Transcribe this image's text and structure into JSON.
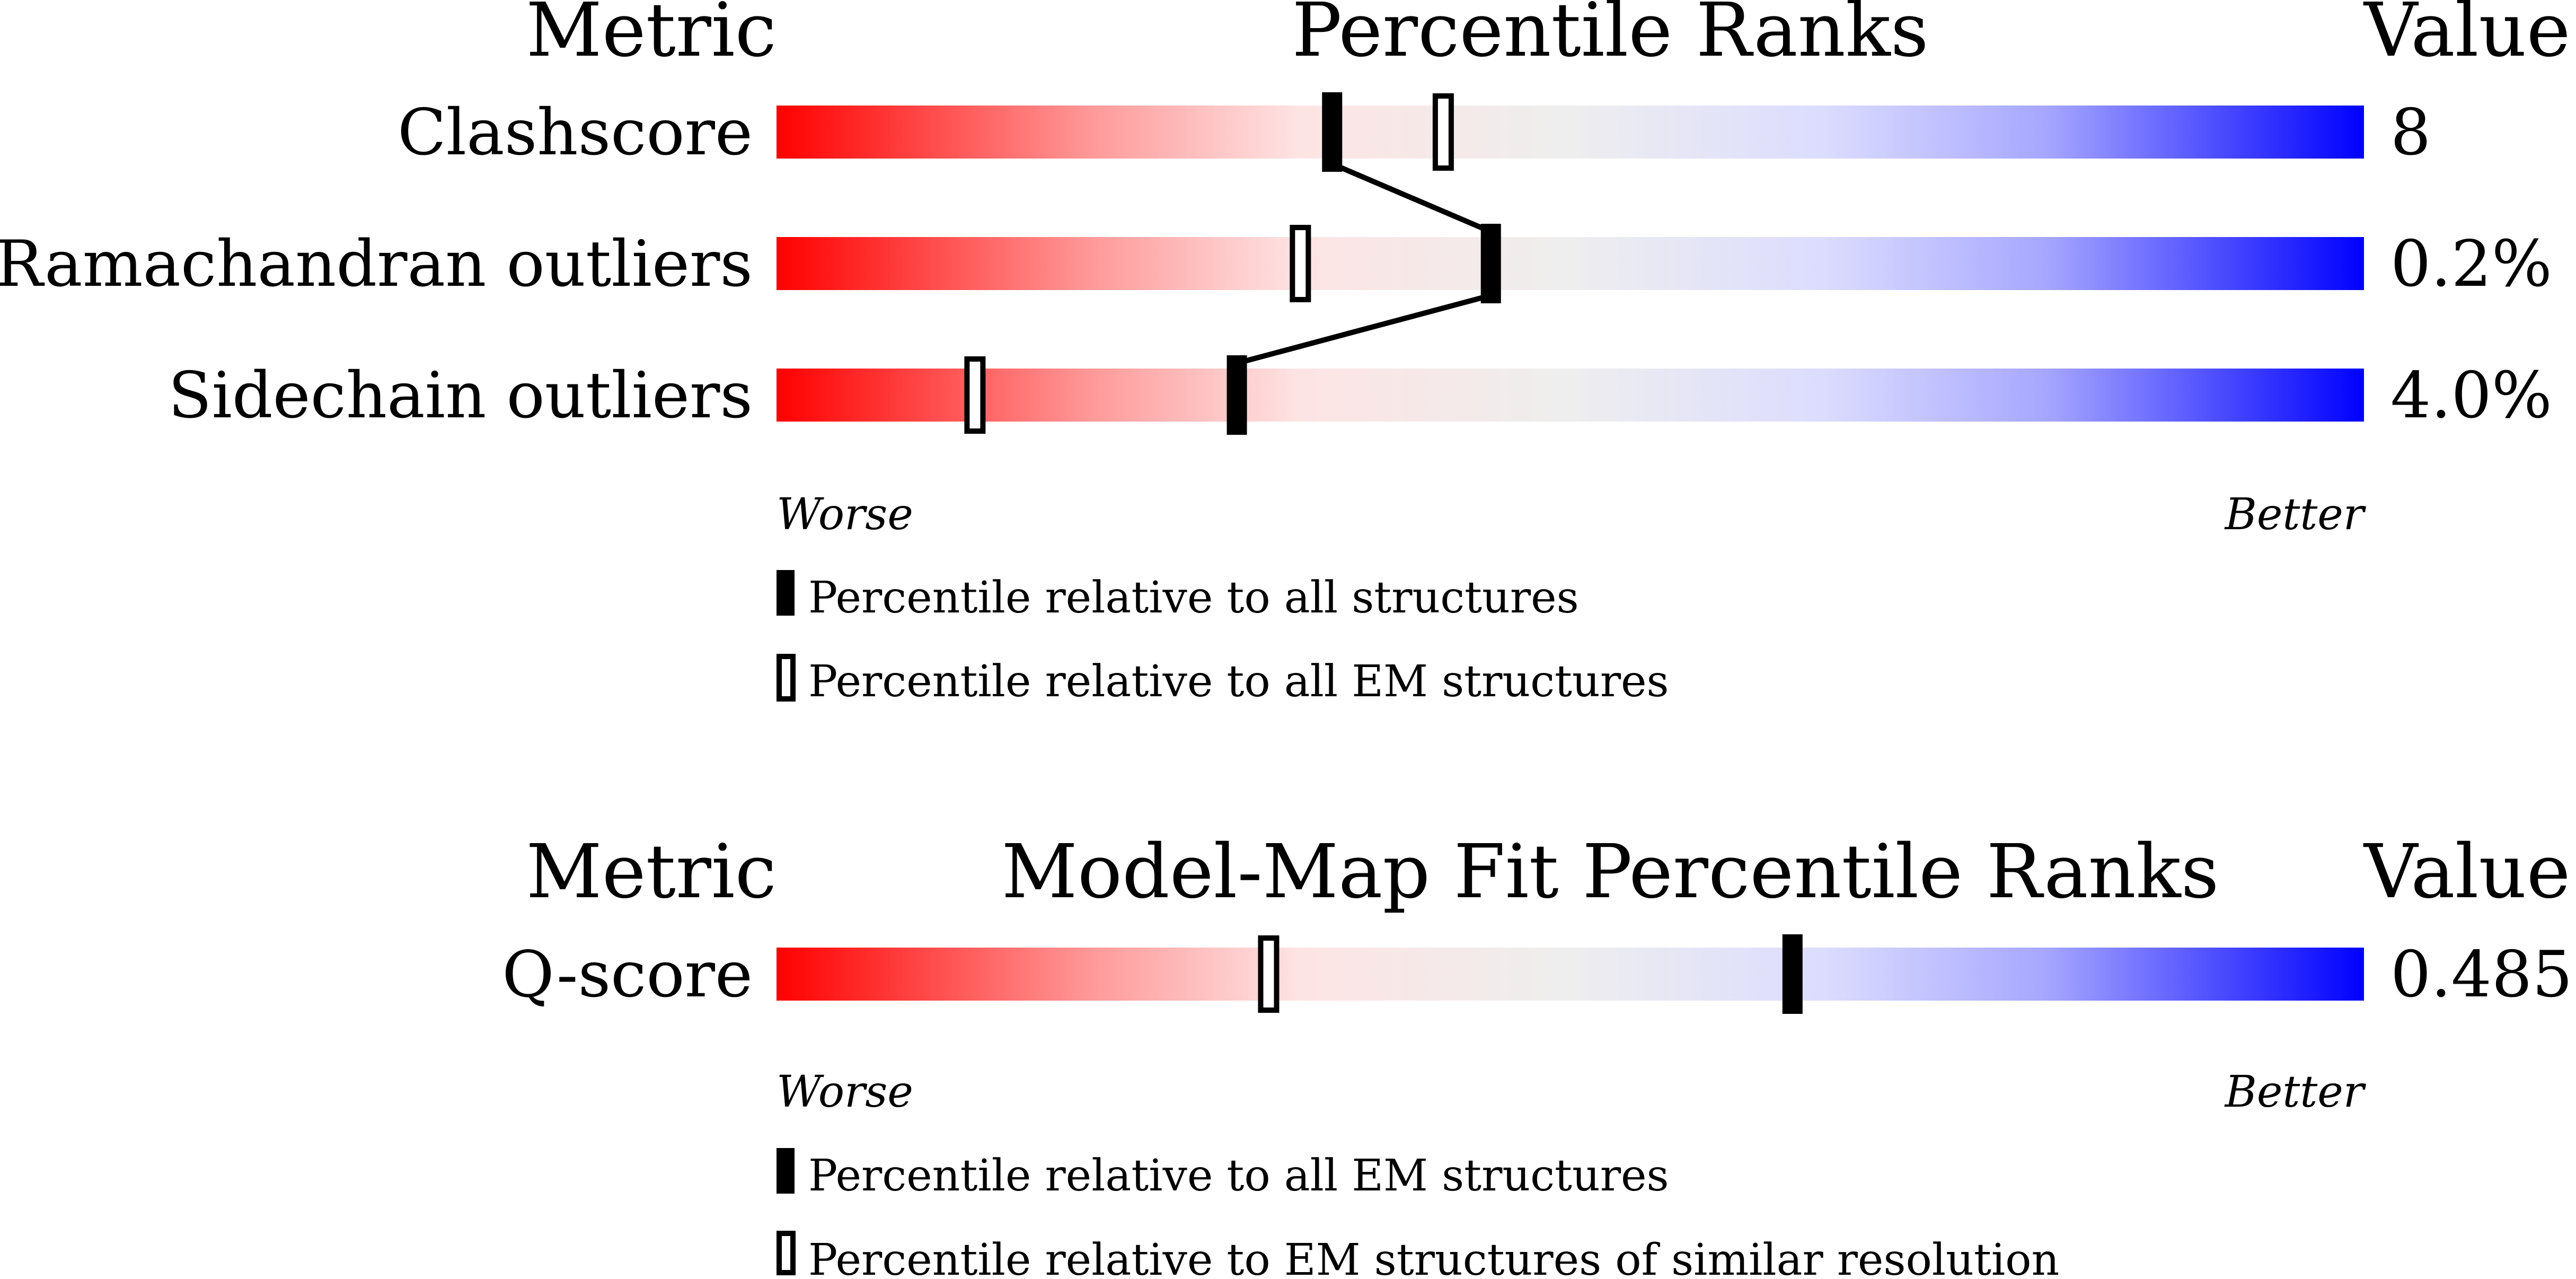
{
  "chart_data": [
    {
      "type": "percentile-rank",
      "header": {
        "metric": "Metric",
        "title": "Percentile Ranks",
        "value": "Value"
      },
      "range": [
        0,
        100
      ],
      "axis": {
        "left": "Worse",
        "right": "Better"
      },
      "gradient": {
        "start": "#ff0000",
        "mid": "#eeeeee",
        "end": "#0000ff"
      },
      "rows": [
        {
          "label": "Clashscore",
          "value": "8",
          "all": 35,
          "em": 42
        },
        {
          "label": "Ramachandran outliers",
          "value": "0.2%",
          "all": 45,
          "em": 33
        },
        {
          "label": "Sidechain outliers",
          "value": "4.0%",
          "all": 29,
          "em": 12.5
        }
      ],
      "connect_all_markers": true,
      "legend": [
        {
          "marker": "filled",
          "text": "Percentile relative to all structures"
        },
        {
          "marker": "open",
          "text": "Percentile relative to all EM structures"
        }
      ]
    },
    {
      "type": "percentile-rank",
      "header": {
        "metric": "Metric",
        "title": "Model-Map Fit Percentile Ranks",
        "value": "Value"
      },
      "range": [
        0,
        100
      ],
      "axis": {
        "left": "Worse",
        "right": "Better"
      },
      "gradient": {
        "start": "#ff0000",
        "mid": "#eeeeee",
        "end": "#0000ff"
      },
      "rows": [
        {
          "label": "Q-score",
          "value": "0.485",
          "all": 64,
          "em": 31
        }
      ],
      "connect_all_markers": false,
      "legend": [
        {
          "marker": "filled",
          "text": "Percentile relative to all EM structures"
        },
        {
          "marker": "open",
          "text": "Percentile relative to EM structures of similar resolution"
        }
      ]
    }
  ]
}
